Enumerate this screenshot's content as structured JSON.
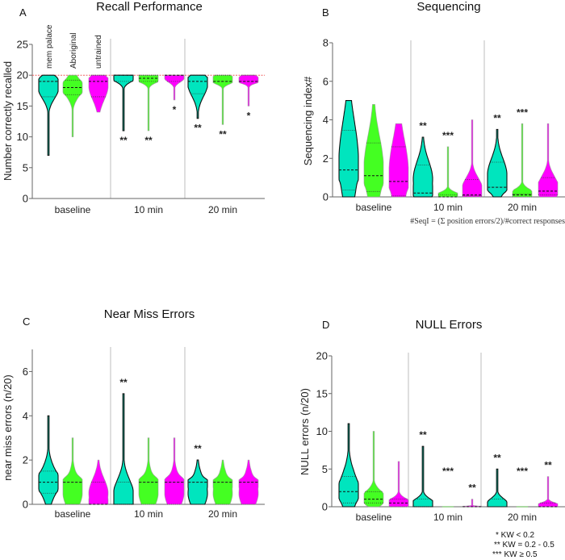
{
  "colors": {
    "mem_palace": "#00E5BE",
    "aboriginal": "#44FF22",
    "untrained": "#FF00FF",
    "reference_line": "#F06060",
    "axis": "#666666",
    "separator": "#C8C8C8"
  },
  "groups": [
    "mem palace",
    "Aboriginal",
    "untrained"
  ],
  "legend": [
    "* KW < 0.2",
    "** KW = 0.2 - 0.5",
    "*** KW ≥ 0.5"
  ],
  "chart_data": [
    {
      "panel": "A",
      "type": "violin",
      "title": "Recall Performance",
      "xlabel": "",
      "ylabel": "Number correctly recalled",
      "ylim": [
        0,
        25
      ],
      "yticks": [
        0,
        5,
        10,
        15,
        20,
        25
      ],
      "categories": [
        "baseline",
        "10 min",
        "20 min"
      ],
      "reference_line": 20,
      "series": [
        {
          "name": "mem palace",
          "violins": [
            {
              "min": 7,
              "max": 20,
              "median": 19,
              "q1": 16.5,
              "q3": 19,
              "sig": ""
            },
            {
              "min": 11,
              "max": 20,
              "median": 20,
              "q1": 19,
              "q3": 20,
              "sig": "**"
            },
            {
              "min": 13,
              "max": 20,
              "median": 19,
              "q1": 17,
              "q3": 20,
              "sig": "**"
            }
          ]
        },
        {
          "name": "Aboriginal",
          "violins": [
            {
              "min": 10,
              "max": 20,
              "median": 18,
              "q1": 16.8,
              "q3": 19.2,
              "sig": ""
            },
            {
              "min": 11,
              "max": 20,
              "median": 19.5,
              "q1": 19,
              "q3": 20,
              "sig": "**"
            },
            {
              "min": 12,
              "max": 20,
              "median": 19,
              "q1": 19,
              "q3": 20,
              "sig": "**"
            }
          ]
        },
        {
          "name": "untrained",
          "violins": [
            {
              "min": 14,
              "max": 20,
              "median": 19,
              "q1": 16.5,
              "q3": 20,
              "sig": ""
            },
            {
              "min": 16,
              "max": 20,
              "median": 20,
              "q1": 19,
              "q3": 20,
              "sig": "*"
            },
            {
              "min": 15,
              "max": 20,
              "median": 19,
              "q1": 19,
              "q3": 20,
              "sig": "*"
            }
          ]
        }
      ]
    },
    {
      "panel": "B",
      "type": "violin",
      "title": "Sequencing",
      "xlabel": "",
      "ylabel": "Sequencing index#",
      "ylim": [
        0,
        8
      ],
      "yticks": [
        0,
        2,
        4,
        6,
        8
      ],
      "categories": [
        "baseline",
        "10 min",
        "20 min"
      ],
      "footnote": "#SeqI = (Σ position errors/2)/#correct responses",
      "series": [
        {
          "name": "mem palace",
          "violins": [
            {
              "min": 0,
              "max": 5,
              "median": 1.4,
              "q1": 0.35,
              "q3": 3.45,
              "sig": ""
            },
            {
              "min": 0,
              "max": 3.1,
              "median": 0.2,
              "q1": 0.2,
              "q3": 1.65,
              "sig": "**"
            },
            {
              "min": 0,
              "max": 3.5,
              "median": 0.5,
              "q1": 0.5,
              "q3": 1.8,
              "sig": "**"
            }
          ]
        },
        {
          "name": "Aboriginal",
          "violins": [
            {
              "min": 0,
              "max": 4.8,
              "median": 1.1,
              "q1": 0.28,
              "q3": 2.8,
              "sig": ""
            },
            {
              "min": 0,
              "max": 2.6,
              "median": 0,
              "q1": 0,
              "q3": 0.1,
              "sig": "***"
            },
            {
              "min": 0,
              "max": 3.8,
              "median": 0.1,
              "q1": 0,
              "q3": 0.15,
              "sig": "***"
            }
          ]
        },
        {
          "name": "untrained",
          "violins": [
            {
              "min": 0,
              "max": 3.8,
              "median": 0.8,
              "q1": 0.05,
              "q3": 2.6,
              "sig": ""
            },
            {
              "min": 0,
              "max": 4,
              "median": 0.1,
              "q1": 0.05,
              "q3": 0.9,
              "sig": ""
            },
            {
              "min": 0,
              "max": 3.8,
              "median": 0.3,
              "q1": 0.1,
              "q3": 1.0,
              "sig": ""
            }
          ]
        }
      ]
    },
    {
      "panel": "C",
      "type": "violin",
      "title": "Near Miss Errors",
      "xlabel": "",
      "ylabel": "near miss errors (n/20)",
      "ylim": [
        0,
        7
      ],
      "yticks": [
        0,
        2,
        4,
        6
      ],
      "categories": [
        "baseline",
        "10 min",
        "20 min"
      ],
      "series": [
        {
          "name": "mem palace",
          "violins": [
            {
              "min": 0,
              "max": 4,
              "median": 1,
              "q1": 0.5,
              "q3": 1.5,
              "sig": ""
            },
            {
              "min": 0,
              "max": 5,
              "median": 0,
              "q1": 0,
              "q3": 1,
              "sig": "**"
            },
            {
              "min": 0,
              "max": 2,
              "median": 1,
              "q1": 0,
              "q3": 1,
              "sig": "**"
            }
          ]
        },
        {
          "name": "Aboriginal",
          "violins": [
            {
              "min": 0,
              "max": 3,
              "median": 1,
              "q1": 0,
              "q3": 1,
              "sig": ""
            },
            {
              "min": 0,
              "max": 3,
              "median": 1,
              "q1": 0,
              "q3": 1,
              "sig": ""
            },
            {
              "min": 0,
              "max": 2,
              "median": 1,
              "q1": 0,
              "q3": 1,
              "sig": ""
            }
          ]
        },
        {
          "name": "untrained",
          "violins": [
            {
              "min": 0,
              "max": 2,
              "median": 0,
              "q1": 0,
              "q3": 1,
              "sig": ""
            },
            {
              "min": 0,
              "max": 3,
              "median": 1,
              "q1": 0,
              "q3": 1,
              "sig": ""
            },
            {
              "min": 0,
              "max": 2,
              "median": 1,
              "q1": 0,
              "q3": 1,
              "sig": ""
            }
          ]
        }
      ]
    },
    {
      "panel": "D",
      "type": "violin",
      "title": "NULL Errors",
      "xlabel": "",
      "ylabel": "NULL errors (n/20)",
      "ylim": [
        0,
        20
      ],
      "yticks": [
        0,
        5,
        10,
        15,
        20
      ],
      "categories": [
        "baseline",
        "10 min",
        "20 min"
      ],
      "series": [
        {
          "name": "mem palace",
          "violins": [
            {
              "min": 0,
              "max": 11,
              "median": 2,
              "q1": 0.5,
              "q3": 4,
              "sig": ""
            },
            {
              "min": 0,
              "max": 8,
              "median": 0,
              "q1": 0,
              "q3": 1,
              "sig": "**"
            },
            {
              "min": 0,
              "max": 5,
              "median": 0,
              "q1": 0,
              "q3": 1,
              "sig": "**"
            }
          ]
        },
        {
          "name": "Aboriginal",
          "violins": [
            {
              "min": 0,
              "max": 10,
              "median": 1,
              "q1": 0.5,
              "q3": 2,
              "sig": ""
            },
            {
              "min": 0,
              "max": 0,
              "median": 0,
              "q1": 0,
              "q3": 0,
              "sig": "***"
            },
            {
              "min": 0,
              "max": 0,
              "median": 0,
              "q1": 0,
              "q3": 0,
              "sig": "***"
            }
          ]
        },
        {
          "name": "untrained",
          "violins": [
            {
              "min": 0,
              "max": 6,
              "median": 0.5,
              "q1": 0,
              "q3": 1,
              "sig": ""
            },
            {
              "min": 0,
              "max": 1,
              "median": 0,
              "q1": 0,
              "q3": 0,
              "sig": "**"
            },
            {
              "min": 0,
              "max": 4,
              "median": 0,
              "q1": 0,
              "q3": 0.5,
              "sig": "**"
            }
          ]
        }
      ]
    }
  ]
}
